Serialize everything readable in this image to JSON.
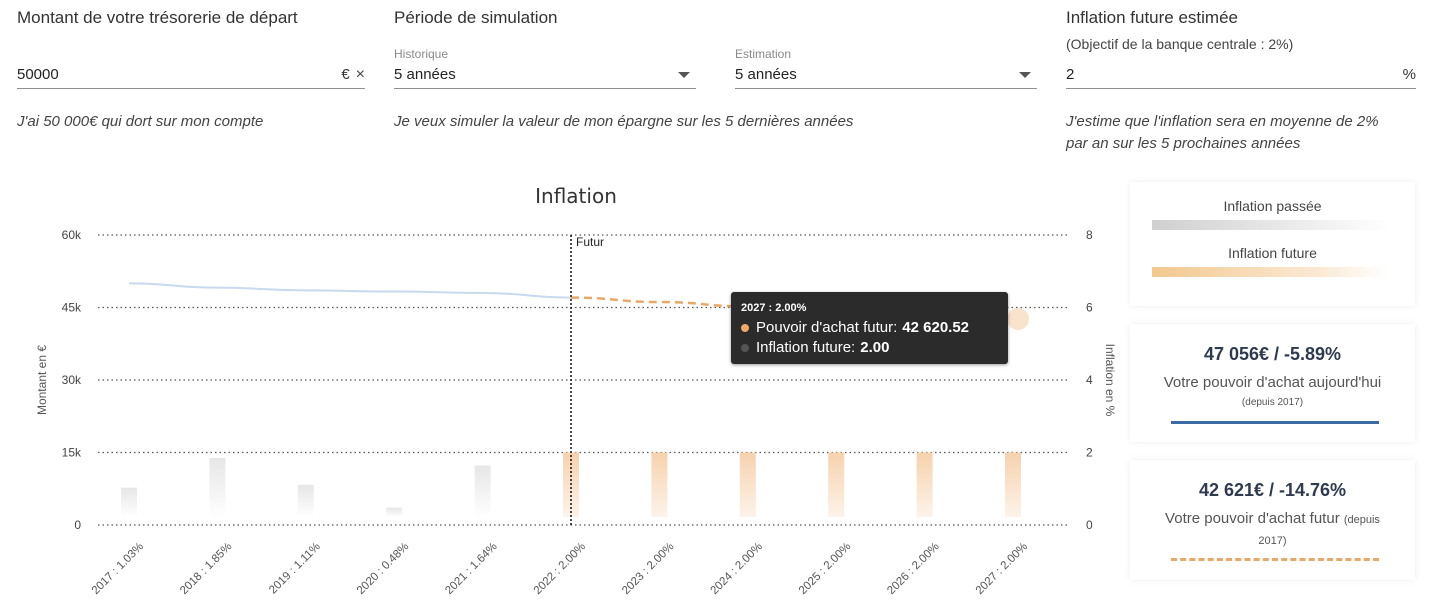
{
  "form": {
    "tresorerie": {
      "title": "Montant de votre trésorerie de départ",
      "value": "50000",
      "suffix": "€",
      "clear": "×",
      "description": "J'ai 50 000€ qui dort sur mon compte"
    },
    "periode": {
      "title": "Période de simulation",
      "historique_label": "Historique",
      "historique_value": "5 années",
      "estimation_label": "Estimation",
      "estimation_value": "5 années",
      "description": "Je veux simuler la valeur de mon épargne sur les 5 dernières années"
    },
    "inflation": {
      "title": "Inflation future estimée",
      "subtitle": "(Objectif de la banque centrale : 2%)",
      "value": "2",
      "suffix": "%",
      "description_line1": "J'estime que l'inflation sera en moyenne de 2%",
      "description_line2": "par an sur les 5 prochaines années"
    }
  },
  "chart_data": {
    "type": "bar",
    "title": "Inflation",
    "categories": [
      "2017 : 1.03%",
      "2018 : 1.85%",
      "2019 : 1.11%",
      "2020 : 0.48%",
      "2021 : 1.64%",
      "2022 : 2.00%",
      "2023 : 2.00%",
      "2024 : 2.00%",
      "2025 : 2.00%",
      "2026 : 2.00%",
      "2027 : 2.00%"
    ],
    "ylabel": "Montant en €",
    "y2label": "Inflation en %",
    "ylim": [
      0,
      60000
    ],
    "y2lim": [
      0,
      8
    ],
    "yticks": [
      "0",
      "15k",
      "30k",
      "45k",
      "60k"
    ],
    "y2ticks": [
      "0",
      "2",
      "4",
      "6",
      "8"
    ],
    "marker_label": "Futur",
    "marker_index": 5,
    "grid": true,
    "series": [
      {
        "name": "Inflation passée",
        "axis": "right",
        "kind": "bar",
        "values": [
          1.03,
          1.85,
          1.11,
          0.48,
          1.64,
          null,
          null,
          null,
          null,
          null,
          null
        ],
        "color": "#d8d8d8"
      },
      {
        "name": "Inflation future",
        "axis": "right",
        "kind": "bar",
        "values": [
          null,
          null,
          null,
          null,
          null,
          2.0,
          2.0,
          2.0,
          2.0,
          2.0,
          2.0
        ],
        "color": "#f3c79b"
      },
      {
        "name": "Pouvoir d'achat",
        "axis": "left",
        "kind": "line",
        "values": [
          50000,
          49100,
          48550,
          48300,
          48000,
          47056,
          null,
          null,
          null,
          null,
          null
        ],
        "color": "#c9d9ee"
      },
      {
        "name": "Pouvoir d'achat futur",
        "axis": "left",
        "kind": "line-dashed",
        "values": [
          null,
          null,
          null,
          null,
          null,
          47056,
          46130,
          45220,
          44330,
          43460,
          42620.52
        ],
        "color": "#e8a868"
      }
    ]
  },
  "tooltip": {
    "header": "2027 : 2.00%",
    "row1_label": "Pouvoir d'achat futur:",
    "row1_value": "42 620.52",
    "row1_color": "#f0a868",
    "row2_label": "Inflation future:",
    "row2_value": "2.00",
    "row2_color": "#555555"
  },
  "legend": {
    "past_label": "Inflation passée",
    "future_label": "Inflation future"
  },
  "stats": {
    "today": {
      "value": "47 056€ / -5.89%",
      "label": "Votre pouvoir d'achat aujourd'hui",
      "since": "(depuis 2017)",
      "line_color": "#3b6aa4"
    },
    "future": {
      "value": "42 621€ / -14.76%",
      "label": "Votre pouvoir d'achat futur",
      "since_inline": "(depuis",
      "since_line2": "2017)",
      "line_color": "#e8a868"
    }
  }
}
